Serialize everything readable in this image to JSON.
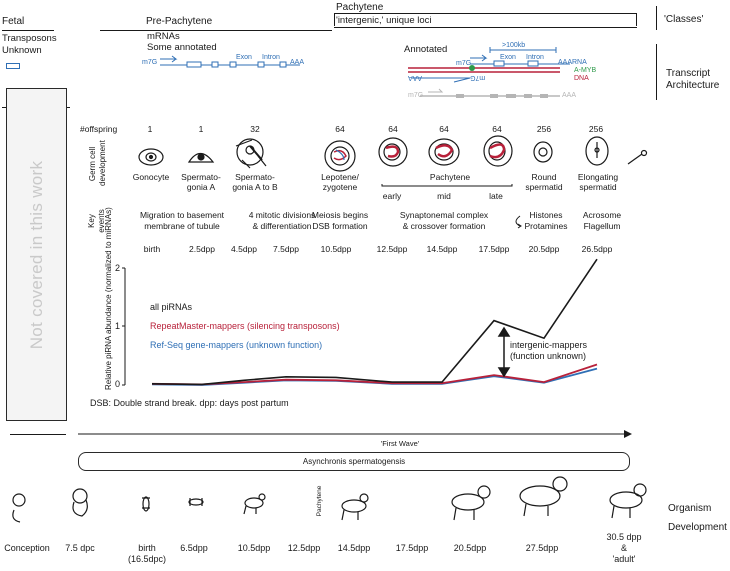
{
  "classes": {
    "fetal": "Fetal",
    "pre_pachytene": "Pre-Pachytene",
    "pachytene": "Pachytene",
    "pachytene_sub": "'intergenic,' unique loci",
    "classes_label": "'Classes'",
    "fetal_sub1": "Transposons",
    "fetal_sub2": "Unknown",
    "pre_sub1": "mRNAs",
    "pre_sub2": "Some annotated",
    "annotated": "Annotated",
    "transcript_arch_1": "Transcript",
    "transcript_arch_2": "Architecture"
  },
  "transcript": {
    "m7g": "m7G",
    "exon": "Exon",
    "intron": "Intron",
    "aaa": "AAA",
    "size_label": ">100kb",
    "aaa_rna": "AAARNA",
    "amyb": "A-MYB",
    "dna": "DNA",
    "m7g_rev": "m7G",
    "aaa_rev": "AAA"
  },
  "sidebar": {
    "label": "Not covered in this work"
  },
  "rows": {
    "offspring_label": "#offspring",
    "germ_label_1": "Germ cell",
    "germ_label_2": "development",
    "key_label_1": "Key",
    "key_label_2": "events",
    "pachytene_group": "Pachytene"
  },
  "stages": [
    {
      "offspring": "1",
      "name": "Gonocyte",
      "name2": "",
      "event": "Migration to basement",
      "event2": "membrane of tubule",
      "day": "birth"
    },
    {
      "offspring": "1",
      "name": "Spermato-",
      "name2": "gonia A",
      "event": "",
      "event2": "",
      "day": "2.5dpp"
    },
    {
      "offspring": "32",
      "name": "Spermato-",
      "name2": "gonia A to B",
      "event": "4 mitotic divisions",
      "event2": "& differentiation",
      "day": "4.5dpp"
    },
    {
      "offspring": "",
      "name": "",
      "name2": "",
      "event": "",
      "event2": "",
      "day": "7.5dpp"
    },
    {
      "offspring": "64",
      "name": "Lepotene/",
      "name2": "zygotene",
      "event": "Meiosis begins",
      "event2": "DSB formation",
      "day": "10.5dpp"
    },
    {
      "offspring": "64",
      "name": "early",
      "name2": "",
      "event": "Synaptonemal complex",
      "event2": "& crossover formation",
      "day": "12.5dpp"
    },
    {
      "offspring": "64",
      "name": "mid",
      "name2": "",
      "event": "",
      "event2": "",
      "day": "14.5dpp"
    },
    {
      "offspring": "64",
      "name": "late",
      "name2": "",
      "event": "",
      "event2": "",
      "day": "17.5dpp"
    },
    {
      "offspring": "256",
      "name": "Round",
      "name2": "spermatid",
      "event": "Histones",
      "event2": "Protamines",
      "day": "20.5dpp"
    },
    {
      "offspring": "256",
      "name": "Elongating",
      "name2": "spermatid",
      "event": "Acrosome",
      "event2": "Flagellum",
      "day": "26.5dpp"
    }
  ],
  "chart_data": {
    "type": "line",
    "x": [
      "birth",
      "2.5dpp",
      "4.5dpp",
      "7.5dpp",
      "10.5dpp",
      "12.5dpp",
      "14.5dpp",
      "17.5dpp",
      "20.5dpp",
      "26.5dpp"
    ],
    "ylabel": "Relative piRNA abundance (normalized to miRNAs)",
    "ylim": [
      0,
      2
    ],
    "yticks": [
      "0",
      "1",
      "2"
    ],
    "series": [
      {
        "name": "all piRNAs",
        "color": "#1a1a1a",
        "values": [
          0.02,
          0.01,
          0.08,
          0.14,
          0.13,
          0.05,
          0.05,
          1.1,
          0.8,
          2.15
        ]
      },
      {
        "name": "RepeatMaster-mappers (silencing transposons)",
        "color": "#b8213a",
        "values": [
          0.02,
          0.01,
          0.05,
          0.09,
          0.08,
          0.03,
          0.03,
          0.17,
          0.05,
          0.35
        ]
      },
      {
        "name": "Ref-Seq gene-mappers (unknown function)",
        "color": "#2f6fb5",
        "values": [
          0.01,
          0.0,
          0.04,
          0.08,
          0.07,
          0.02,
          0.02,
          0.15,
          0.04,
          0.28
        ]
      }
    ],
    "annotation_1": "intergenic-mappers",
    "annotation_2": "(function unknown)"
  },
  "footnote": "DSB: Double strand break. dpp: days post partum",
  "first_wave": "'First Wave'",
  "asynchronous": "Asynchronis spermatogensis",
  "organism": {
    "label_1": "Organism",
    "label_2": "Development",
    "pachytene_tag": "Pachytene",
    "stages": [
      {
        "label": "Conception",
        "label2": ""
      },
      {
        "label": "7.5 dpc",
        "label2": ""
      },
      {
        "label": "birth",
        "label2": "(16.5dpc)"
      },
      {
        "label": "6.5dpp",
        "label2": ""
      },
      {
        "label": "10.5dpp",
        "label2": ""
      },
      {
        "label": "12.5dpp",
        "label2": ""
      },
      {
        "label": "14.5dpp",
        "label2": ""
      },
      {
        "label": "17.5dpp",
        "label2": ""
      },
      {
        "label": "20.5dpp",
        "label2": ""
      },
      {
        "label": "27.5dpp",
        "label2": ""
      },
      {
        "label": "30.5 dpp",
        "label2": "&",
        "label3": "'adult'"
      }
    ]
  }
}
